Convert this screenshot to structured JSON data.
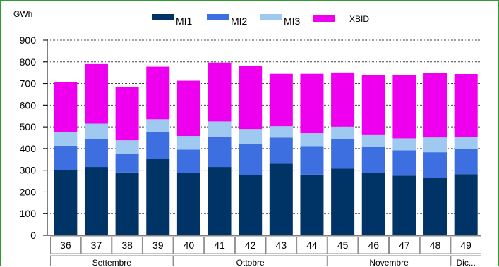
{
  "chart_data": {
    "type": "bar",
    "stacked": true,
    "unit_label": "GWh",
    "categories": [
      "36",
      "37",
      "38",
      "39",
      "40",
      "41",
      "42",
      "43",
      "44",
      "45",
      "46",
      "47",
      "48",
      "49"
    ],
    "groups": [
      {
        "label": "Settembre",
        "weeks": [
          "36",
          "37",
          "38",
          "39"
        ]
      },
      {
        "label": "Ottobre",
        "weeks": [
          "40",
          "41",
          "42",
          "43",
          "44"
        ]
      },
      {
        "label": "Novembre",
        "weeks": [
          "45",
          "46",
          "47",
          "48"
        ]
      },
      {
        "label": "Dic...",
        "weeks": [
          "49"
        ]
      }
    ],
    "series": [
      {
        "name": "MI1",
        "color": "#003366",
        "values": [
          300,
          315,
          290,
          352,
          288,
          315,
          278,
          330,
          280,
          307,
          288,
          275,
          265,
          282
        ]
      },
      {
        "name": "MI2",
        "color": "#3d6fe0",
        "values": [
          113,
          127,
          85,
          123,
          107,
          137,
          142,
          120,
          131,
          137,
          120,
          117,
          118,
          115
        ]
      },
      {
        "name": "MI3",
        "color": "#9fc9f0",
        "values": [
          63,
          73,
          63,
          60,
          63,
          73,
          70,
          53,
          60,
          57,
          57,
          55,
          68,
          55
        ]
      },
      {
        "name": "XBID",
        "color": "#ee00ee",
        "values": [
          232,
          275,
          247,
          243,
          255,
          272,
          290,
          242,
          274,
          250,
          275,
          291,
          299,
          292
        ]
      }
    ],
    "ylim": [
      0,
      900
    ],
    "yticks": [
      0,
      100,
      200,
      300,
      400,
      500,
      600,
      700,
      800,
      900
    ],
    "grid": true,
    "legend_position": "top"
  }
}
